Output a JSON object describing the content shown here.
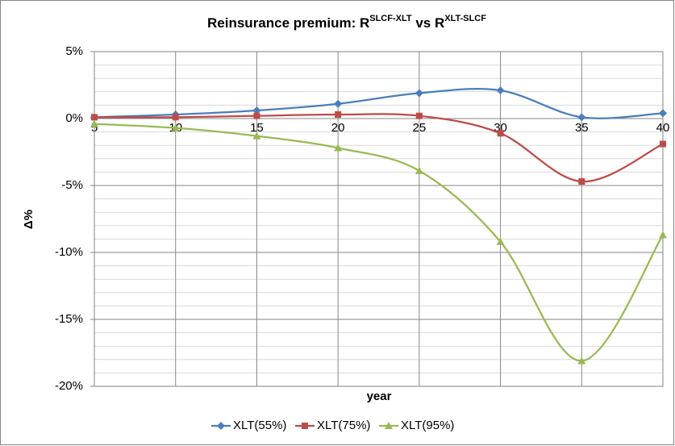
{
  "chart_data": {
    "type": "line",
    "title": [
      "Reinsurance premium: R",
      "SLCF-XLT",
      " vs R",
      "XLT-SLCF"
    ],
    "x_label": "year",
    "y_label": "Δ%",
    "x": [
      5,
      10,
      15,
      20,
      25,
      30,
      35,
      40
    ],
    "xlim": [
      5,
      40
    ],
    "xticks": [
      5,
      10,
      15,
      20,
      25,
      30,
      35,
      40
    ],
    "ylim": [
      -20,
      5
    ],
    "yticks": [
      {
        "value": -20,
        "label": "-20%"
      },
      {
        "value": -15,
        "label": "-15%"
      },
      {
        "value": -10,
        "label": "-10%"
      },
      {
        "value": -5,
        "label": "-5%"
      },
      {
        "value": 0,
        "label": "0%"
      },
      {
        "value": 5,
        "label": "5%"
      }
    ],
    "minor_grid_step": 1,
    "grid": true,
    "smooth": true,
    "legend": "bottom",
    "series": [
      {
        "name": "XLT(55%)",
        "color": "#4a7ebb",
        "marker": "diamond",
        "values": [
          0.1,
          0.3,
          0.6,
          1.1,
          1.9,
          2.1,
          0.1,
          0.4
        ]
      },
      {
        "name": "XLT(75%)",
        "color": "#be4b48",
        "marker": "square",
        "values": [
          0.1,
          0.1,
          0.2,
          0.3,
          0.2,
          -1.1,
          -4.7,
          -1.9
        ]
      },
      {
        "name": "XLT(95%)",
        "color": "#98b954",
        "marker": "triangle",
        "values": [
          -0.4,
          -0.7,
          -1.3,
          -2.2,
          -3.9,
          -9.2,
          -18.1,
          -8.7
        ]
      }
    ]
  }
}
